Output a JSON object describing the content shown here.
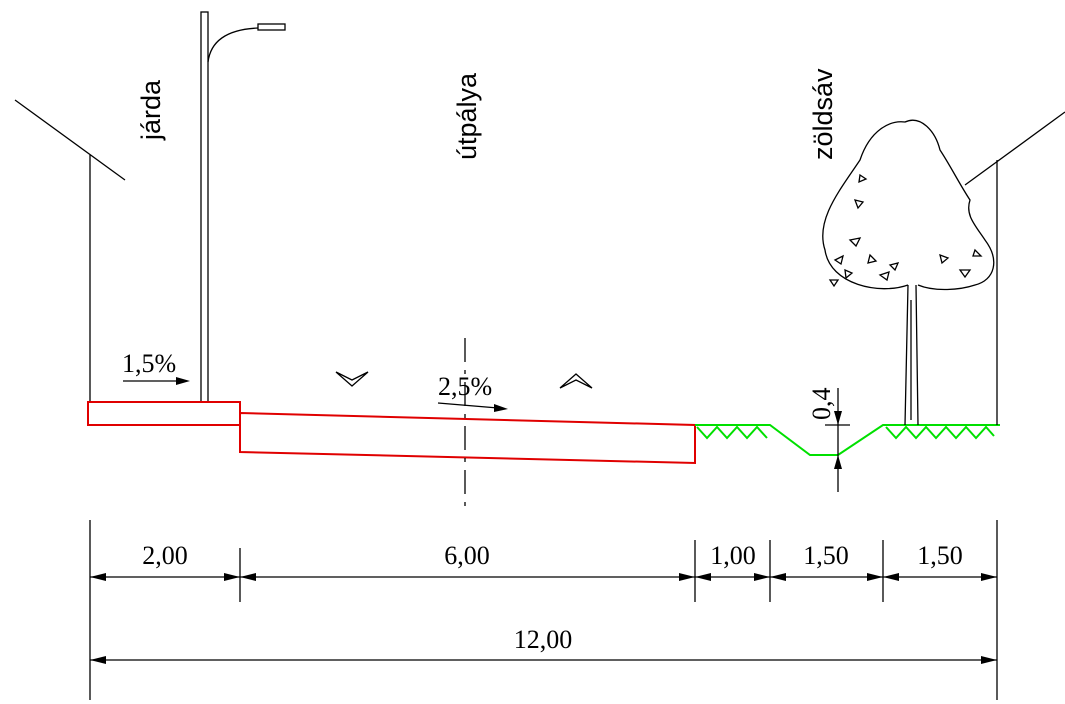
{
  "labels": {
    "sidewalk": "járda",
    "roadway": "útpálya",
    "green_strip": "zöldsáv"
  },
  "slopes": {
    "sidewalk": "1,5%",
    "roadway": "2,5%"
  },
  "ditch_depth": "0,4",
  "dimensions": [
    "2,00",
    "6,00",
    "1,00",
    "1,50",
    "1,50"
  ],
  "total_width": "12,00"
}
